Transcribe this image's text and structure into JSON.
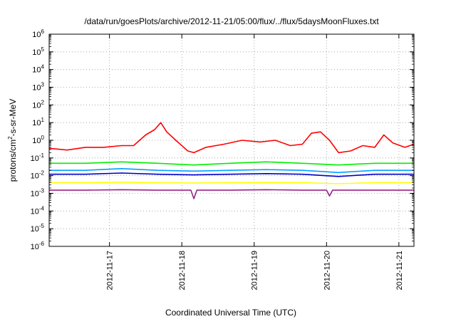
{
  "chart_data": {
    "type": "line",
    "title": "/data/run/goesPlots/archive/2012-11-21/05:00/flux/../flux/5daysMoonFluxes.txt",
    "xlabel": "Coordinated Universal Time (UTC)",
    "ylabel": {
      "parts": [
        {
          "text": "protons/cm",
          "sup": false
        },
        {
          "text": "2",
          "sup": true
        },
        {
          "text": "-s-sr-MeV",
          "sup": false
        }
      ]
    },
    "y_scale": "log",
    "ylim": [
      1e-06,
      1000000.0
    ],
    "y_ticks": [
      {
        "value": 1e-06,
        "base": "10",
        "exp": "-6"
      },
      {
        "value": 1e-05,
        "base": "10",
        "exp": "-5"
      },
      {
        "value": 0.0001,
        "base": "10",
        "exp": "-4"
      },
      {
        "value": 0.001,
        "base": "10",
        "exp": "-3"
      },
      {
        "value": 0.01,
        "base": "10",
        "exp": "-2"
      },
      {
        "value": 0.1,
        "base": "10",
        "exp": "-1"
      },
      {
        "value": 1,
        "base": "10",
        "exp": "0"
      },
      {
        "value": 10,
        "base": "10",
        "exp": "1"
      },
      {
        "value": 100,
        "base": "10",
        "exp": "2"
      },
      {
        "value": 1000,
        "base": "10",
        "exp": "3"
      },
      {
        "value": 10000.0,
        "base": "10",
        "exp": "4"
      },
      {
        "value": 100000.0,
        "base": "10",
        "exp": "5"
      },
      {
        "value": 1000000.0,
        "base": "10",
        "exp": "6"
      }
    ],
    "xlim": [
      "2012-11-16T04:00",
      "2012-11-21T05:00"
    ],
    "x_ticks": [
      {
        "value": "2012-11-17T00:00",
        "label": "2012-11-17"
      },
      {
        "value": "2012-11-18T00:00",
        "label": "2012-11-18"
      },
      {
        "value": "2012-11-19T00:00",
        "label": "2012-11-19"
      },
      {
        "value": "2012-11-20T00:00",
        "label": "2012-11-20"
      },
      {
        "value": "2012-11-21T00:00",
        "label": "2012-11-21"
      }
    ],
    "grid": true,
    "legend": "none",
    "series": [
      {
        "color": "#ff0000",
        "x": [
          "2012-11-16T04:00",
          "2012-11-16T10:00",
          "2012-11-16T16:00",
          "2012-11-16T22:00",
          "2012-11-17T04:00",
          "2012-11-17T08:00",
          "2012-11-17T12:00",
          "2012-11-17T15:00",
          "2012-11-17T17:00",
          "2012-11-17T19:00",
          "2012-11-17T22:00",
          "2012-11-18T02:00",
          "2012-11-18T04:00",
          "2012-11-18T08:00",
          "2012-11-18T14:00",
          "2012-11-18T20:00",
          "2012-11-19T02:00",
          "2012-11-19T07:00",
          "2012-11-19T12:00",
          "2012-11-19T16:00",
          "2012-11-19T19:00",
          "2012-11-19T22:00",
          "2012-11-20T01:00",
          "2012-11-20T04:00",
          "2012-11-20T08:00",
          "2012-11-20T12:00",
          "2012-11-20T16:00",
          "2012-11-20T19:00",
          "2012-11-20T22:00",
          "2012-11-21T02:00",
          "2012-11-21T05:00"
        ],
        "y": [
          0.35,
          0.28,
          0.4,
          0.4,
          0.5,
          0.5,
          2.0,
          4.0,
          10,
          3.0,
          1.0,
          0.25,
          0.2,
          0.4,
          0.6,
          1.0,
          0.8,
          1.0,
          0.5,
          0.6,
          2.5,
          3.0,
          1.0,
          0.2,
          0.25,
          0.5,
          0.4,
          2.0,
          0.7,
          0.4,
          0.6
        ]
      },
      {
        "color": "#00ee00",
        "x": [
          "2012-11-16T04:00",
          "2012-11-16T16:00",
          "2012-11-17T04:00",
          "2012-11-17T16:00",
          "2012-11-18T04:00",
          "2012-11-18T16:00",
          "2012-11-19T04:00",
          "2012-11-19T16:00",
          "2012-11-20T04:00",
          "2012-11-20T16:00",
          "2012-11-21T05:00"
        ],
        "y": [
          0.05,
          0.05,
          0.06,
          0.05,
          0.04,
          0.05,
          0.06,
          0.05,
          0.04,
          0.05,
          0.05
        ]
      },
      {
        "color": "#00a0ff",
        "x": [
          "2012-11-16T04:00",
          "2012-11-16T16:00",
          "2012-11-17T04:00",
          "2012-11-17T16:00",
          "2012-11-18T04:00",
          "2012-11-18T16:00",
          "2012-11-19T04:00",
          "2012-11-19T16:00",
          "2012-11-20T04:00",
          "2012-11-20T16:00",
          "2012-11-21T05:00"
        ],
        "y": [
          0.02,
          0.02,
          0.025,
          0.02,
          0.018,
          0.02,
          0.022,
          0.02,
          0.015,
          0.02,
          0.02
        ]
      },
      {
        "color": "#0000cc",
        "x": [
          "2012-11-16T04:00",
          "2012-11-16T16:00",
          "2012-11-17T04:00",
          "2012-11-17T16:00",
          "2012-11-18T04:00",
          "2012-11-18T16:00",
          "2012-11-19T04:00",
          "2012-11-19T16:00",
          "2012-11-20T04:00",
          "2012-11-20T16:00",
          "2012-11-21T05:00"
        ],
        "y": [
          0.012,
          0.012,
          0.014,
          0.012,
          0.011,
          0.012,
          0.013,
          0.012,
          0.009,
          0.012,
          0.012
        ]
      },
      {
        "color": "#ffff00",
        "x": [
          "2012-11-16T04:00",
          "2012-11-16T16:00",
          "2012-11-17T04:00",
          "2012-11-17T16:00",
          "2012-11-18T04:00",
          "2012-11-18T16:00",
          "2012-11-19T04:00",
          "2012-11-19T16:00",
          "2012-11-20T04:00",
          "2012-11-20T16:00",
          "2012-11-21T05:00"
        ],
        "y": [
          0.004,
          0.004,
          0.0042,
          0.004,
          0.0038,
          0.004,
          0.0041,
          0.004,
          0.0035,
          0.004,
          0.004
        ]
      },
      {
        "color": "#992288",
        "x": [
          "2012-11-16T04:00",
          "2012-11-16T16:00",
          "2012-11-17T04:00",
          "2012-11-17T16:00",
          "2012-11-18T03:00",
          "2012-11-18T04:00",
          "2012-11-18T05:00",
          "2012-11-18T16:00",
          "2012-11-19T04:00",
          "2012-11-19T16:00",
          "2012-11-20T00:00",
          "2012-11-20T01:00",
          "2012-11-20T02:00",
          "2012-11-20T16:00",
          "2012-11-21T05:00"
        ],
        "y": [
          0.0015,
          0.0015,
          0.0016,
          0.0015,
          0.0015,
          0.0005,
          0.0015,
          0.0015,
          0.0016,
          0.0015,
          0.0015,
          0.0007,
          0.0015,
          0.0015,
          0.0015
        ]
      }
    ]
  }
}
